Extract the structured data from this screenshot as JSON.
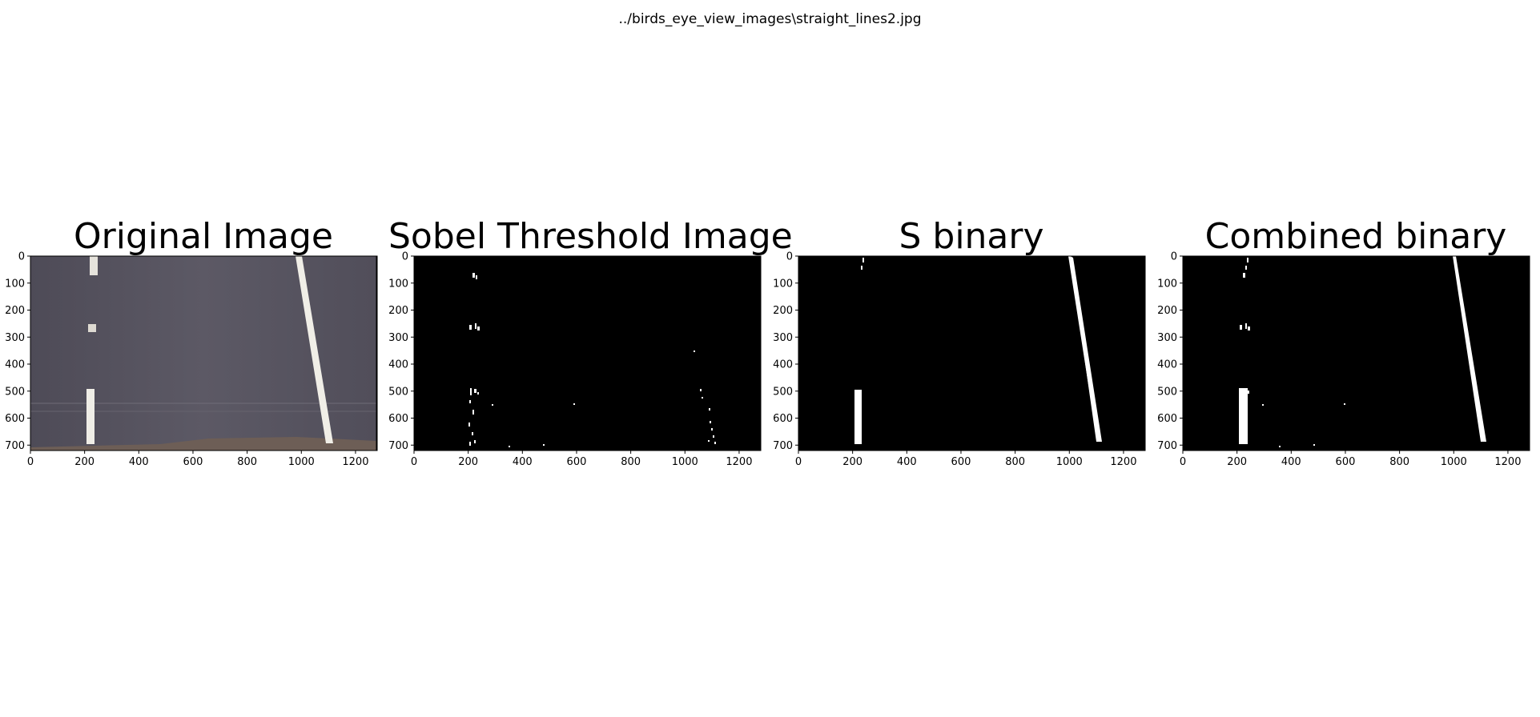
{
  "figure": {
    "suptitle": "../birds_eye_view_images\\straight_lines2.jpg"
  },
  "panels": [
    {
      "title": "Original Image",
      "kind": "photo",
      "x_ticks": [
        "0",
        "200",
        "400",
        "600",
        "800",
        "1000",
        "1200"
      ],
      "y_ticks": [
        "0",
        "100",
        "200",
        "300",
        "400",
        "500",
        "600",
        "700"
      ]
    },
    {
      "title": "Sobel Threshold Image",
      "kind": "sobel",
      "x_ticks": [
        "0",
        "200",
        "400",
        "600",
        "800",
        "1000",
        "1200"
      ],
      "y_ticks": [
        "0",
        "100",
        "200",
        "300",
        "400",
        "500",
        "600",
        "700"
      ]
    },
    {
      "title": "S binary",
      "kind": "sbinary",
      "x_ticks": [
        "0",
        "200",
        "400",
        "600",
        "800",
        "1000",
        "1200"
      ],
      "y_ticks": [
        "0",
        "100",
        "200",
        "300",
        "400",
        "500",
        "600",
        "700"
      ]
    },
    {
      "title": "Combined binary",
      "kind": "combined",
      "x_ticks": [
        "0",
        "200",
        "400",
        "600",
        "800",
        "1000",
        "1200"
      ],
      "y_ticks": [
        "0",
        "100",
        "200",
        "300",
        "400",
        "500",
        "600",
        "700"
      ]
    }
  ],
  "image_extent": {
    "width": 1280,
    "height": 720
  },
  "colors": {
    "road": "#57545f",
    "lane_line": "#f2f0e8",
    "ground": "#6d5e56",
    "binary_bg": "#000000",
    "binary_fg": "#ffffff"
  }
}
